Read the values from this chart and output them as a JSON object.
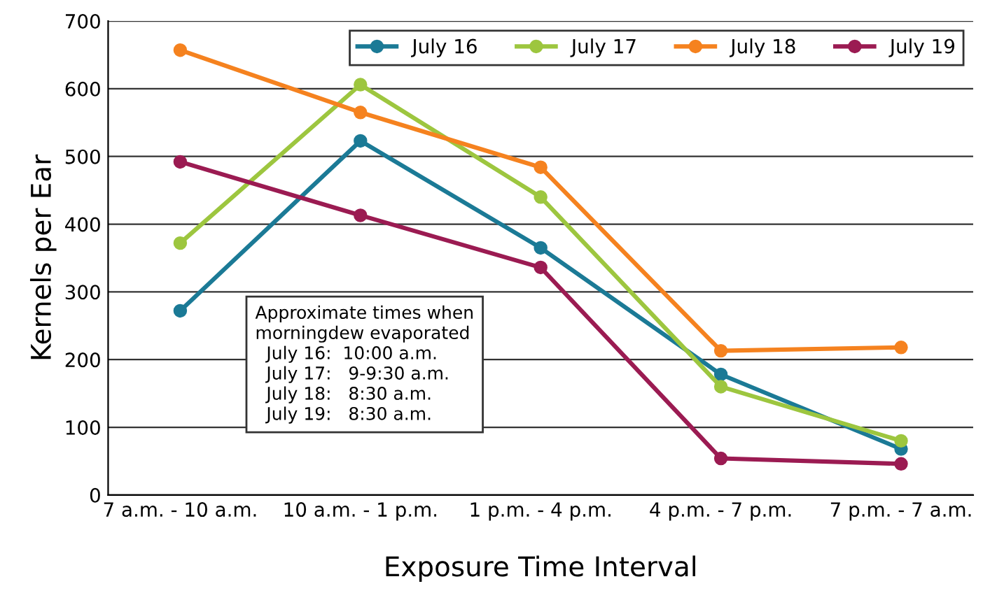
{
  "chart_data": {
    "type": "line",
    "xlabel": "Exposure Time Interval",
    "ylabel": "Kernels per Ear",
    "categories": [
      "7 a.m. - 10 a.m.",
      "10 a.m. - 1 p.m.",
      "1 p.m. - 4 p.m.",
      "4 p.m. - 7 p.m.",
      "7 p.m. - 7 a.m."
    ],
    "series": [
      {
        "name": "July 16",
        "color": "#1b7a96",
        "values": [
          272,
          523,
          365,
          178,
          68
        ]
      },
      {
        "name": "July 17",
        "color": "#9dc63f",
        "values": [
          372,
          606,
          440,
          160,
          80
        ]
      },
      {
        "name": "July 18",
        "color": "#f5821f",
        "values": [
          657,
          565,
          484,
          213,
          218
        ]
      },
      {
        "name": "July 19",
        "color": "#9b1b52",
        "values": [
          492,
          413,
          336,
          54,
          46
        ]
      }
    ],
    "ylim": [
      0,
      700
    ],
    "yticks": [
      0,
      100,
      200,
      300,
      400,
      500,
      600,
      700
    ],
    "grid": "y",
    "legend": "top right",
    "marker": "circle",
    "line_style": "solid",
    "annotations": [
      "Approximate times when\nmorningdew evaporated\n  July 16:  10:00 a.m.\n  July 17:   9-9:30 a.m.\n  July 18:   8:30 a.m.\n  July 19:   8:30 a.m."
    ]
  }
}
